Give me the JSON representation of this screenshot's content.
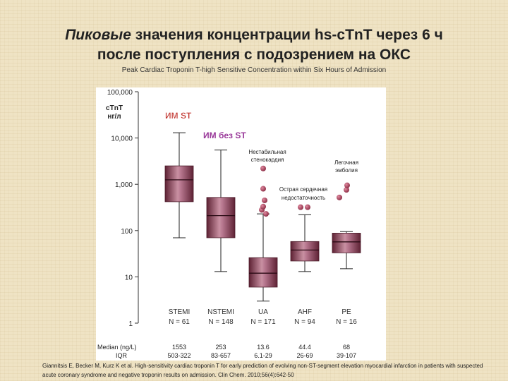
{
  "slide": {
    "title_italic": "Пиковые",
    "title_rest_line1": " значения концентрации hs-cTnT через 6 ч",
    "title_line2": "после поступления с подозрением на ОКС",
    "subtitle": "Peak Cardiac Troponin T-high Sensitive Concentration within Six Hours of Admission",
    "citation": "Giannitsis E, Becker M, Kurz K et al. High-sensitivity cardiac troponin T for early prediction of evolving non-ST-segment elevation myocardial infarction in patients with suspected acute coronary syndrome and negative troponin results on admission. Clin Chem. 2010;56(4):642-50"
  },
  "chart_data": {
    "type": "box",
    "yscale": "log",
    "ylim": [
      1,
      100000
    ],
    "yticks": [
      "100,000",
      "10,000",
      "1,000",
      "100",
      "10",
      "1"
    ],
    "ylabel_line1": "cTnT",
    "ylabel_line2": "нг/л",
    "categories": [
      "STEMI",
      "NSTEMI",
      "UA",
      "AHF",
      "PE"
    ],
    "n_labels": [
      "N = 61",
      "N = 148",
      "N = 171",
      "N = 94",
      "N = 16"
    ],
    "boxes": [
      {
        "whisker_low": 70,
        "q1": 420,
        "median": 1250,
        "q3": 2500,
        "whisker_high": 13000,
        "outliers": []
      },
      {
        "whisker_low": 13,
        "q1": 70,
        "median": 210,
        "q3": 520,
        "whisker_high": 5500,
        "outliers": []
      },
      {
        "whisker_low": 3,
        "q1": 6,
        "median": 12,
        "q3": 26,
        "whisker_high": 230,
        "outliers": [
          230,
          280,
          330,
          450,
          800,
          2200
        ]
      },
      {
        "whisker_low": 13,
        "q1": 22,
        "median": 38,
        "q3": 58,
        "whisker_high": 220,
        "outliers": [
          320,
          320
        ]
      },
      {
        "whisker_low": 15,
        "q1": 33,
        "median": 57,
        "q3": 88,
        "whisker_high": 95,
        "outliers": [
          520,
          760,
          950
        ]
      }
    ],
    "group_labels": {
      "stemi": "ИМ ST",
      "nstemi": "ИМ без ST",
      "ua_line1": "Нестабильная",
      "ua_line2": "стенокардия",
      "ahf_line1": "Острая сердечная",
      "ahf_line2": "недостаточность",
      "pe_line1": "Легочная",
      "pe_line2": "эмболия"
    },
    "table": {
      "median_label": "Median (ng/L)",
      "iqr_label": "IQR",
      "medians": [
        "1553",
        "253",
        "13.6",
        "44.4",
        "68"
      ],
      "iqrs": [
        "503-322",
        "83-657",
        "6.1-29",
        "26-69",
        "39-107"
      ]
    },
    "colors": {
      "box_fill": "#8c3a52",
      "box_light": "#c990a2",
      "outlier": "#a83a55",
      "stemi_label": "#c0302a",
      "nstemi_label": "#9a3a9a"
    }
  }
}
